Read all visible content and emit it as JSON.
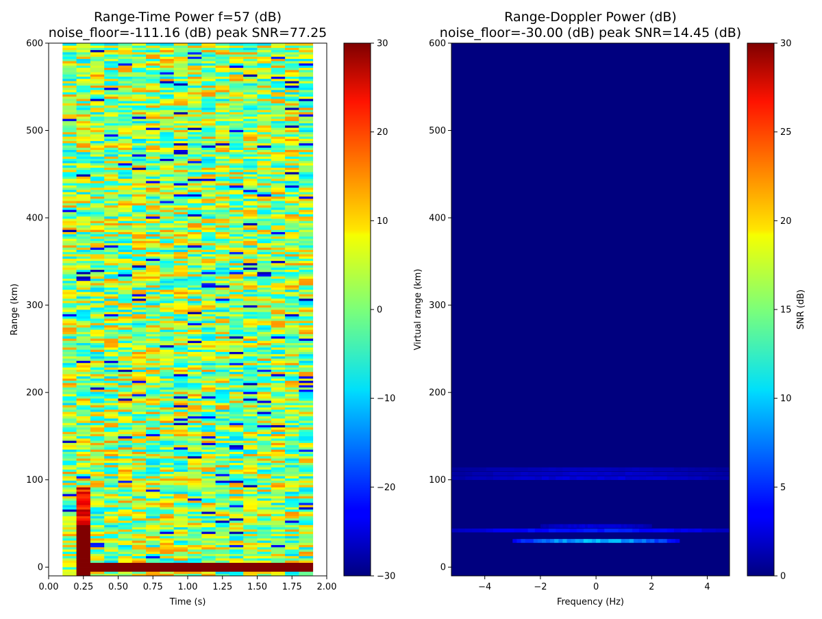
{
  "chart_data": [
    {
      "type": "heatmap",
      "title": "Range-Time Power f=57 (dB)",
      "subtitle": "noise_floor=-111.16 (dB) peak SNR=77.25",
      "xlabel": "Time (s)",
      "ylabel": "Range (km)",
      "xlim": [
        0.0,
        2.0
      ],
      "ylim": [
        -10,
        600
      ],
      "xticks": [
        "0.00",
        "0.25",
        "0.50",
        "0.75",
        "1.00",
        "1.25",
        "1.50",
        "1.75",
        "2.00"
      ],
      "yticks": [
        "0",
        "100",
        "200",
        "300",
        "400",
        "500",
        "600"
      ],
      "colormap": "jet",
      "clim": [
        -30,
        30
      ],
      "colorbar_ticks": [
        "−30",
        "−20",
        "−10",
        "0",
        "10",
        "20",
        "30"
      ],
      "colorbar_label": "",
      "data_extent": {
        "time": [
          0.1,
          1.9
        ],
        "range": [
          -10,
          600
        ]
      },
      "features": [
        {
          "time": [
            0.1,
            0.15
          ],
          "range": [
            -10,
            600
          ],
          "value_db": 30
        },
        {
          "time": [
            0.15,
            0.3
          ],
          "range": [
            -10,
            90
          ],
          "value_db": 30
        },
        {
          "time": [
            0.15,
            0.3
          ],
          "range": [
            50,
            90
          ],
          "value_db": 22
        },
        {
          "time": [
            0.3,
            1.9
          ],
          "range": [
            -3,
            3
          ],
          "value_db": 30
        },
        {
          "background": "noise",
          "value_db_mean": 2,
          "value_db_spread": 12
        }
      ]
    },
    {
      "type": "heatmap",
      "title": "Range-Doppler Power (dB)",
      "subtitle": "noise_floor=-30.00 (dB) peak SNR=14.45 (dB)",
      "xlabel": "Frequency (Hz)",
      "ylabel": "Virtual range (km)",
      "xlim": [
        -5.2,
        4.8
      ],
      "ylim": [
        -10,
        600
      ],
      "xticks": [
        "−4",
        "−2",
        "0",
        "2",
        "4"
      ],
      "yticks": [
        "0",
        "100",
        "200",
        "300",
        "400",
        "500",
        "600"
      ],
      "colormap": "jet",
      "clim": [
        0,
        30
      ],
      "colorbar_ticks": [
        "0",
        "5",
        "10",
        "15",
        "20",
        "25",
        "30"
      ],
      "colorbar_label": "SNR (dB)",
      "features": [
        {
          "range": 30,
          "frequency": [
            -3.0,
            3.0
          ],
          "peak_db": 10
        },
        {
          "range": 42,
          "frequency": [
            -5.2,
            4.8
          ],
          "peak_db": 5
        },
        {
          "range": 47,
          "frequency": [
            -2.0,
            2.0
          ],
          "peak_db": 3
        },
        {
          "range": 102,
          "frequency": [
            -5.2,
            4.8
          ],
          "peak_db": 3
        },
        {
          "range": 107,
          "frequency": [
            -5.2,
            4.8
          ],
          "peak_db": 2.5
        },
        {
          "range": 112,
          "frequency": [
            -5.2,
            4.8
          ],
          "peak_db": 2
        }
      ]
    }
  ]
}
